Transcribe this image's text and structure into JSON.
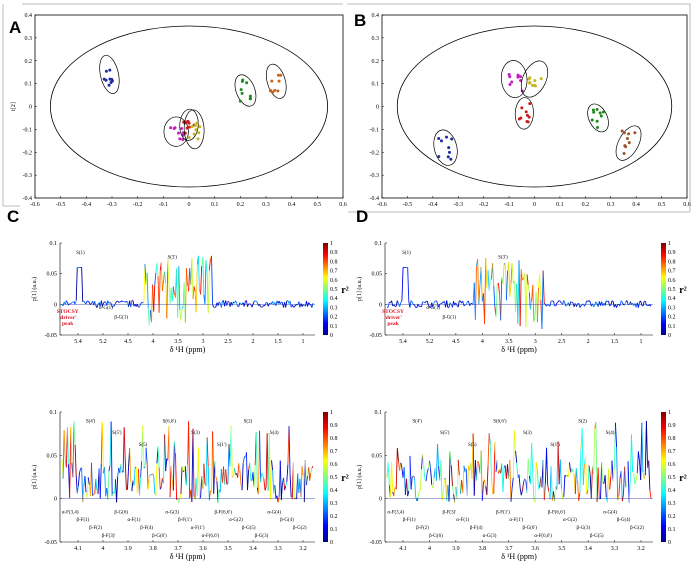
{
  "panels": {
    "a": {
      "letter": "A"
    },
    "b": {
      "letter": "B"
    },
    "c": {
      "letter": "C"
    },
    "d": {
      "letter": "D"
    }
  },
  "chart_data": [
    {
      "id": "A",
      "type": "scatter",
      "title": "",
      "xlabel": "",
      "ylabel": "t[2]",
      "xlim": [
        -0.6,
        0.6
      ],
      "ylim": [
        -0.4,
        0.4
      ],
      "xticks": [
        "-0.6",
        "-0.5",
        "-0.4",
        "-0.3",
        "-0.2",
        "-0.1",
        "0",
        "0.1",
        "0.2",
        "0.3",
        "0.4",
        "0.5",
        "0.6"
      ],
      "yticks": [
        "-0.4",
        "-0.3",
        "-0.2",
        "-0.1",
        "0",
        "0.1",
        "0.2",
        "0.3",
        "0.4"
      ],
      "groups": [
        {
          "name": "blue",
          "color": "#1f2b9e",
          "center": [
            -0.31,
            0.14
          ]
        },
        {
          "name": "magenta",
          "color": "#c01ec0",
          "center": [
            -0.05,
            -0.11
          ]
        },
        {
          "name": "red",
          "color": "#cc1a1a",
          "center": [
            0.0,
            -0.08
          ]
        },
        {
          "name": "yellow",
          "color": "#c8b41e",
          "center": [
            0.02,
            -0.1
          ]
        },
        {
          "name": "green",
          "color": "#1e8a1e",
          "center": [
            0.22,
            0.07
          ]
        },
        {
          "name": "orange",
          "color": "#c8641e",
          "center": [
            0.34,
            0.11
          ]
        }
      ]
    },
    {
      "id": "B",
      "type": "scatter",
      "title": "",
      "xlabel": "",
      "ylabel": "",
      "xlim": [
        -0.6,
        0.6
      ],
      "ylim": [
        -0.4,
        0.4
      ],
      "xticks": [
        "-0.6",
        "-0.5",
        "-0.4",
        "-0.3",
        "-0.2",
        "-0.1",
        "0",
        "0.1",
        "0.2",
        "0.3",
        "0.4",
        "0.5",
        "0.6"
      ],
      "yticks": [
        "-0.4",
        "-0.3",
        "-0.2",
        "-0.1",
        "0",
        "0.1",
        "0.2",
        "0.3",
        "0.4"
      ],
      "groups": [
        {
          "name": "blue",
          "color": "#1f2b9e",
          "center": [
            -0.35,
            -0.18
          ]
        },
        {
          "name": "magenta",
          "color": "#c01ec0",
          "center": [
            -0.08,
            0.12
          ]
        },
        {
          "name": "yellow",
          "color": "#c8b41e",
          "center": [
            0.0,
            0.12
          ]
        },
        {
          "name": "red",
          "color": "#cc1a1a",
          "center": [
            -0.04,
            -0.03
          ]
        },
        {
          "name": "green",
          "color": "#1e8a1e",
          "center": [
            0.25,
            -0.05
          ]
        },
        {
          "name": "brown",
          "color": "#a0522d",
          "center": [
            0.37,
            -0.16
          ]
        }
      ]
    },
    {
      "id": "C-top",
      "type": "line",
      "ylabel": "p[1] (a.u.)",
      "xlabel": "δ ¹H (ppm)",
      "ylim": [
        -0.05,
        0.1
      ],
      "yticks": [
        "0.1",
        "0.05",
        "0",
        "-0.05"
      ],
      "xticks": [
        "5.4",
        "5.2",
        "4.5",
        "4",
        "3.5",
        "3",
        "2.5",
        "2",
        "1.5",
        "1"
      ],
      "colorbar_label": "r²",
      "colorbar_ticks": [
        "0",
        "0.1",
        "0.2",
        "0.3",
        "0.4",
        "0.5",
        "0.6",
        "0.7",
        "0.8",
        "0.9",
        "1"
      ],
      "annotations": [
        "S(1)",
        "S(3')",
        "α-G(1)",
        "β-G(1)"
      ],
      "stocsy_label": [
        "STOCSY",
        "'driver'",
        "peak"
      ]
    },
    {
      "id": "D-top",
      "type": "line",
      "ylabel": "p[1] (a.u.)",
      "xlabel": "δ ¹H (ppm)",
      "ylim": [
        -0.05,
        0.1
      ],
      "yticks": [
        "0.1",
        "0.05",
        "0",
        "-0.05"
      ],
      "xticks": [
        "5.4",
        "5.2",
        "4.5",
        "4",
        "3.5",
        "3",
        "2.5",
        "2",
        "1.5",
        "1"
      ],
      "colorbar_label": "r²",
      "colorbar_ticks": [
        "0",
        "0.1",
        "0.2",
        "0.3",
        "0.4",
        "0.5",
        "0.6",
        "0.7",
        "0.8",
        "0.9",
        "1"
      ],
      "annotations": [
        "S(1)",
        "S(3')",
        "α-G(1)",
        "β-G(1)"
      ],
      "stocsy_label": [
        "STOCSY",
        "'driver'",
        "peak"
      ]
    },
    {
      "id": "C-bottom",
      "type": "line",
      "ylabel": "p[1] (a.u.)",
      "xlabel": "δ ¹H (ppm)",
      "ylim": [
        -0.05,
        0.1
      ],
      "yticks": [
        "0.1",
        "0.05",
        "0",
        "-0.05"
      ],
      "xticks": [
        "4.1",
        "4",
        "3.9",
        "3.8",
        "3.7",
        "3.6",
        "3.5",
        "3.4",
        "3.3",
        "3.2"
      ],
      "colorbar_label": "r²",
      "colorbar_ticks": [
        "0",
        "0.1",
        "0.2",
        "0.3",
        "0.4",
        "0.5",
        "0.6",
        "0.7",
        "0.8",
        "0.9",
        "1"
      ],
      "annotations": [
        "S(4')",
        "S(5')",
        "S(5)",
        "S(6,6')",
        "S(3)",
        "S(1')",
        "S(2)",
        "S(4)",
        "α-F(3,4)",
        "β-F(1)",
        "β-F(2)",
        "β-F(3)'",
        "β-G(6)",
        "α-F(1)",
        "β-F(4)",
        "β-G(6')",
        "α-G(3)",
        "β-F(1')",
        "α-F(1')",
        "α-F(6,6')",
        "β-F(6,6')",
        "α-G(2)",
        "β-G(5)",
        "β-G(3)",
        "α-G(4)",
        "β-G(4)",
        "β-G(2)"
      ]
    },
    {
      "id": "D-bottom",
      "type": "line",
      "ylabel": "p[1] (a.u.)",
      "xlabel": "δ ¹H (ppm)",
      "ylim": [
        -0.05,
        0.1
      ],
      "yticks": [
        "0.1",
        "0.05",
        "0",
        "-0.05"
      ],
      "xticks": [
        "4.1",
        "4",
        "3.9",
        "3.8",
        "3.7",
        "3.6",
        "3.5",
        "3.4",
        "3.3",
        "3.2"
      ],
      "colorbar_label": "r²",
      "colorbar_ticks": [
        "0",
        "0.1",
        "0.2",
        "0.3",
        "0.4",
        "0.5",
        "0.6",
        "0.7",
        "0.8",
        "0.9",
        "1"
      ],
      "annotations": [
        "S(4')",
        "S(5')",
        "S(5)",
        "S(6,6')",
        "S(3)",
        "S(1')",
        "S(2)",
        "S(4)",
        "α-F(3,4)",
        "β-F(1)",
        "β-F(2)",
        "β-G(6)",
        "β-F(3)'",
        "α-F(1)",
        "β-F(4)",
        "α-G(3)",
        "β-F(1')",
        "α-F(1')",
        "β-G(6')",
        "α-F(6,6')",
        "β-F(6,6')",
        "α-G(2)",
        "β-G(3)",
        "β-G(5)",
        "α-G(4)",
        "β-G(4)",
        "β-G(2)"
      ]
    }
  ]
}
